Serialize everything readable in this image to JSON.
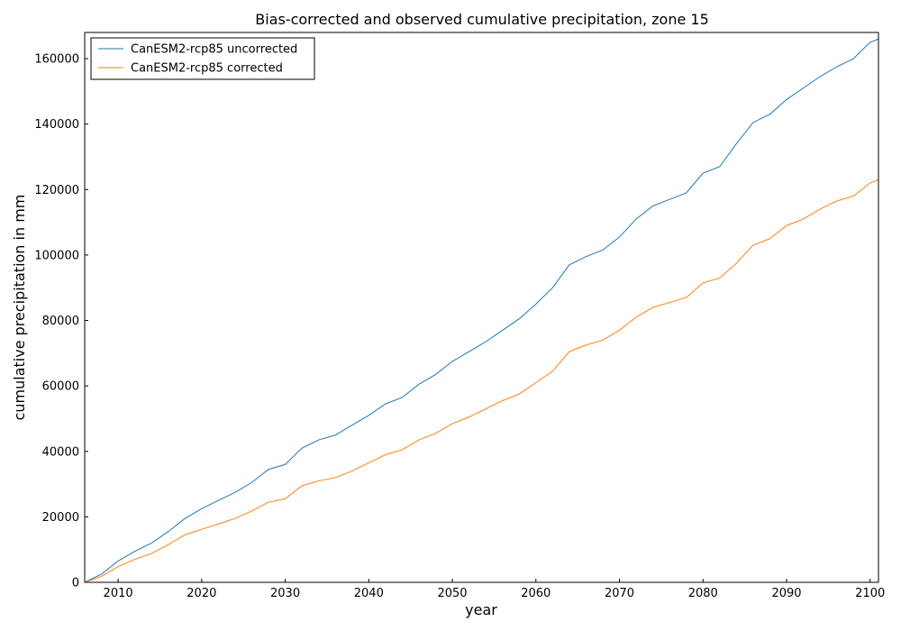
{
  "chart_data": {
    "type": "line",
    "title": "Bias-corrected and observed cumulative precipitation, zone 15",
    "xlabel": "year",
    "ylabel": "cumulative precipitation in mm",
    "xlim": [
      2006,
      2101
    ],
    "ylim": [
      0,
      168000
    ],
    "x_ticks": [
      2010,
      2020,
      2030,
      2040,
      2050,
      2060,
      2070,
      2080,
      2090,
      2100
    ],
    "y_ticks": [
      0,
      20000,
      40000,
      60000,
      80000,
      100000,
      120000,
      140000,
      160000
    ],
    "grid": false,
    "legend_position": "top-left",
    "series": [
      {
        "name": "CanESM2-rcp85 uncorrected",
        "color": "#1f77b4",
        "x": [
          2006,
          2008,
          2010,
          2012,
          2014,
          2016,
          2018,
          2020,
          2022,
          2024,
          2026,
          2028,
          2030,
          2032,
          2034,
          2036,
          2038,
          2040,
          2042,
          2044,
          2046,
          2048,
          2050,
          2052,
          2054,
          2056,
          2058,
          2060,
          2062,
          2064,
          2066,
          2068,
          2070,
          2072,
          2074,
          2076,
          2078,
          2080,
          2082,
          2084,
          2086,
          2088,
          2090,
          2092,
          2094,
          2096,
          2098,
          2100,
          2101
        ],
        "y": [
          0,
          2500,
          6500,
          9500,
          12000,
          15500,
          19500,
          22500,
          25000,
          27500,
          30500,
          34500,
          36000,
          41000,
          43500,
          45000,
          48000,
          51000,
          54500,
          56500,
          60500,
          63500,
          67500,
          70500,
          73500,
          77000,
          80500,
          85000,
          90000,
          97000,
          99500,
          101500,
          105500,
          111000,
          115000,
          117000,
          119000,
          125000,
          127000,
          134000,
          140500,
          143000,
          147500,
          151000,
          154500,
          157500,
          160000,
          165000,
          166000
        ]
      },
      {
        "name": "CanESM2-rcp85 corrected",
        "color": "#ff7f0e",
        "x": [
          2006,
          2008,
          2010,
          2012,
          2014,
          2016,
          2018,
          2020,
          2022,
          2024,
          2026,
          2028,
          2030,
          2032,
          2034,
          2036,
          2038,
          2040,
          2042,
          2044,
          2046,
          2048,
          2050,
          2052,
          2054,
          2056,
          2058,
          2060,
          2062,
          2064,
          2066,
          2068,
          2070,
          2072,
          2074,
          2076,
          2078,
          2080,
          2082,
          2084,
          2086,
          2088,
          2090,
          2092,
          2094,
          2096,
          2098,
          2100,
          2101
        ],
        "y": [
          0,
          1800,
          4800,
          7000,
          8800,
          11500,
          14500,
          16200,
          17800,
          19500,
          21800,
          24500,
          25500,
          29500,
          31000,
          32000,
          34000,
          36500,
          39000,
          40500,
          43500,
          45500,
          48500,
          50500,
          53000,
          55500,
          57500,
          61000,
          64500,
          70500,
          72500,
          74000,
          77000,
          81000,
          84000,
          85500,
          87000,
          91500,
          93000,
          97500,
          103000,
          105000,
          109000,
          111000,
          114000,
          116500,
          118000,
          122000,
          123000
        ]
      }
    ]
  }
}
